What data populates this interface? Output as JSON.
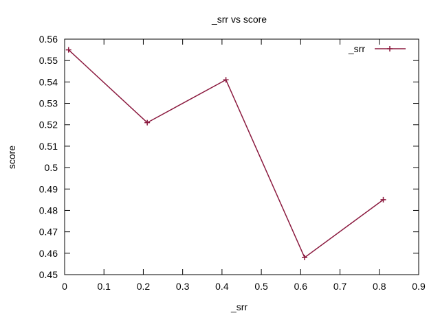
{
  "chart_data": {
    "type": "line",
    "title": "_srr vs score",
    "xlabel": "_srr",
    "ylabel": "score",
    "xlim": [
      0,
      0.9
    ],
    "ylim": [
      0.45,
      0.56
    ],
    "xticks": [
      0,
      0.1,
      0.2,
      0.3,
      0.4,
      0.5,
      0.6,
      0.7,
      0.8,
      0.9
    ],
    "xtick_labels": [
      "0",
      "0.1",
      "0.2",
      "0.3",
      "0.4",
      "0.5",
      "0.6",
      "0.7",
      "0.8",
      "0.9"
    ],
    "yticks": [
      0.45,
      0.46,
      0.47,
      0.48,
      0.49,
      0.5,
      0.51,
      0.52,
      0.53,
      0.54,
      0.55,
      0.56
    ],
    "ytick_labels": [
      "0.45",
      "0.46",
      "0.47",
      "0.48",
      "0.49",
      "0.5",
      "0.51",
      "0.52",
      "0.53",
      "0.54",
      "0.55",
      "0.56"
    ],
    "grid": false,
    "legend_position": "top-right",
    "series": [
      {
        "name": "_srr",
        "color": "#8b1a3f",
        "marker": "plus",
        "x": [
          0.01,
          0.21,
          0.41,
          0.61,
          0.81
        ],
        "y": [
          0.555,
          0.521,
          0.541,
          0.458,
          0.485
        ]
      }
    ]
  }
}
